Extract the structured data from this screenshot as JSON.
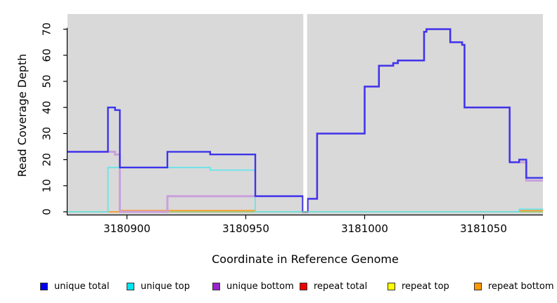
{
  "chart_data": {
    "type": "line",
    "subtype": "step",
    "title": "",
    "xlabel": "Coordinate in Reference Genome",
    "ylabel": "Read Coverage Depth",
    "xlim": [
      3180875,
      3181075
    ],
    "ylim": [
      0,
      76
    ],
    "xticks": [
      3180900,
      3180950,
      3181000,
      3181050
    ],
    "xtick_labels": [
      "3180900",
      "3180950",
      "3181000",
      "3181050"
    ],
    "yticks": [
      0,
      10,
      20,
      30,
      40,
      50,
      60,
      70
    ],
    "grid": false,
    "legend_position": "bottom",
    "panel_bg": "#d9d9d9",
    "zero_baseline_color": "#8fcf8f",
    "gap_mask": {
      "from": 3180974.2,
      "to": 3180975.8
    },
    "series": [
      {
        "name": "unique total",
        "legend_color": "#0000ee",
        "line_color": "#3c35e9",
        "line_width": 2.4,
        "steps": [
          [
            3180875,
            23
          ],
          [
            3180892,
            40
          ],
          [
            3180895,
            39
          ],
          [
            3180897,
            17
          ],
          [
            3180917,
            23
          ],
          [
            3180935,
            22
          ],
          [
            3180954,
            6
          ],
          [
            3180974,
            0
          ],
          [
            3180976,
            5
          ],
          [
            3180980,
            30
          ],
          [
            3181000,
            48
          ],
          [
            3181006,
            56
          ],
          [
            3181012,
            57
          ],
          [
            3181014,
            58
          ],
          [
            3181025,
            69
          ],
          [
            3181026,
            70
          ],
          [
            3181036,
            65
          ],
          [
            3181041,
            64
          ],
          [
            3181042,
            40
          ],
          [
            3181061,
            19
          ],
          [
            3181065,
            20
          ],
          [
            3181068,
            13
          ]
        ]
      },
      {
        "name": "unique top",
        "legend_color": "#00e5ee",
        "line_color": "#66e4ea",
        "line_width": 1.8,
        "steps": [
          [
            3180875,
            0
          ],
          [
            3180892,
            17
          ],
          [
            3180935,
            16
          ],
          [
            3180954,
            0
          ],
          [
            3181065,
            1
          ]
        ]
      },
      {
        "name": "unique bottom",
        "legend_color": "#9a22d0",
        "line_color": "#c9a0dc",
        "line_width": 3,
        "steps": [
          [
            3180875,
            23
          ],
          [
            3180895,
            22
          ],
          [
            3180897,
            0
          ],
          [
            3180917,
            6
          ],
          [
            3180974,
            0
          ],
          [
            3180976,
            5
          ],
          [
            3180980,
            30
          ],
          [
            3181000,
            48
          ],
          [
            3181006,
            56
          ],
          [
            3181012,
            57
          ],
          [
            3181014,
            58
          ],
          [
            3181025,
            69
          ],
          [
            3181026,
            70
          ],
          [
            3181036,
            65
          ],
          [
            3181041,
            64
          ],
          [
            3181042,
            40
          ],
          [
            3181061,
            19
          ],
          [
            3181068,
            12
          ]
        ]
      },
      {
        "name": "repeat total",
        "legend_color": "#ee0000",
        "line_color": "#d43c3c",
        "line_width": 1.6,
        "steps": [
          [
            3180875,
            0
          ]
        ]
      },
      {
        "name": "repeat top",
        "legend_color": "#ffff00",
        "line_color": "#e8e800",
        "line_width": 1.6,
        "steps": [
          [
            3180875,
            0
          ]
        ]
      },
      {
        "name": "repeat bottom",
        "legend_color": "#ff9900",
        "line_color": "#ff9c33",
        "line_width": 1.8,
        "steps": [
          [
            3180875,
            0
          ],
          [
            3180897,
            0.5
          ],
          [
            3180954,
            0
          ],
          [
            3181065,
            0.5
          ]
        ]
      }
    ]
  }
}
